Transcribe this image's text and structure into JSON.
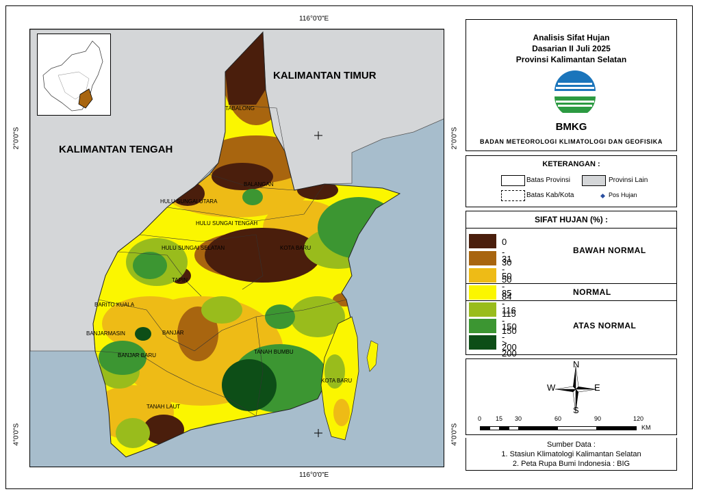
{
  "title": {
    "line1": "Analisis Sifat Hujan",
    "line2": "Dasarian II Juli 2025",
    "line3": "Provinsi Kalimantan Selatan",
    "logo_text": "BMKG",
    "agency": "BADAN METEOROLOGI KLIMATOLOGI DAN GEOFISIKA"
  },
  "coords": {
    "top": "116°0'0\"E",
    "bottom": "116°0'0\"E",
    "left_top": "2°0'0\"S",
    "left_bottom": "4°0'0\"S",
    "right_top": "2°0'0\"S",
    "right_bottom": "4°0'0\"S"
  },
  "map_labels": {
    "kaltim": "KALIMANTAN TIMUR",
    "kalteng": "KALIMANTAN TENGAH",
    "tabalong": "TABALONG",
    "balangan": "BALANGAN",
    "hsu": "HULU SUNGAI UTARA",
    "hst": "HULU SUNGAI TENGAH",
    "hss": "HULU SUNGAI SELATAN",
    "kotabaru1": "KOTA BARU",
    "tapin": "TAPIN",
    "baritokuala": "BARITO KUALA",
    "banjarmasin": "BANJARMASIN",
    "banjar": "BANJAR",
    "banjarbaru": "BANJAR BARU",
    "tanahbumbu": "TANAH BUMBU",
    "kotabaru2": "KOTA BARU",
    "tanahlaut": "TANAH LAUT"
  },
  "keterangan": {
    "heading": "KETERANGAN :",
    "batas_provinsi": "Batas Provinsi",
    "provinsi_lain": "Provinsi Lain",
    "batas_kab": "Batas Kab/Kota",
    "pos_hujan": "Pos Hujan"
  },
  "sifat": {
    "heading": "SIFAT HUJAN (%) :",
    "classes": [
      {
        "range": "0 - 30",
        "color": "#4a1e0c"
      },
      {
        "range": "31 - 50",
        "color": "#a8650f"
      },
      {
        "range": "50 - 84",
        "color": "#eebb16"
      },
      {
        "range": "85 - 115",
        "color": "#fbf600"
      },
      {
        "range": "116 - 150",
        "color": "#99bc1c"
      },
      {
        "range": "150 - 200",
        "color": "#3c9632"
      },
      {
        "range": "> 200",
        "color": "#0d4e17"
      }
    ],
    "cat_bawah": "BAWAH NORMAL",
    "cat_normal": "NORMAL",
    "cat_atas": "ATAS NORMAL"
  },
  "compass": {
    "n": "N",
    "s": "S",
    "e": "E",
    "w": "W"
  },
  "scale": {
    "ticks": [
      "0",
      "15",
      "30",
      "60",
      "90",
      "120"
    ],
    "unit": "KM"
  },
  "sumber": {
    "heading": "Sumber Data :",
    "line1": "1. Stasiun Klimatologi Kalimantan Selatan",
    "line2": "2. Peta Rupa Bumi Indonesia : BIG"
  }
}
